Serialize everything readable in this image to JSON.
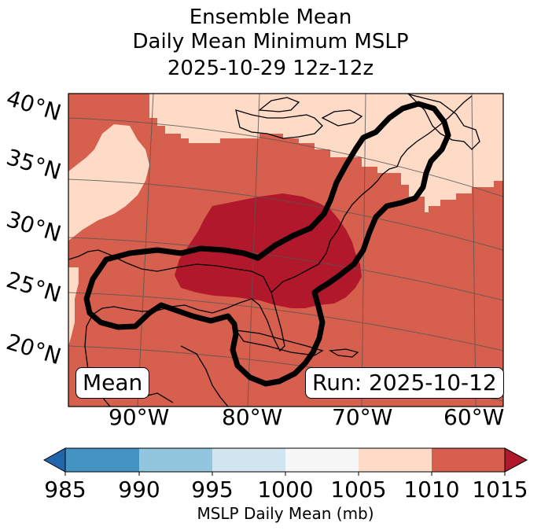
{
  "title": {
    "line1": "Ensemble Mean",
    "line2": "Daily Mean Minimum MSLP",
    "line3": "2025-10-29 12z-12z"
  },
  "map": {
    "lat_labels": [
      "40°N",
      "35°N",
      "30°N",
      "25°N",
      "20°N"
    ],
    "lon_labels": [
      "90°W",
      "80°W",
      "70°W",
      "60°W"
    ],
    "label_left": "Mean",
    "label_right": "Run: 2025-10-12",
    "colors": {
      "c1000_1005": "#f7f7f7",
      "c1005_1010": "#fddbc7",
      "c1010_1015": "#d6604d",
      "c1015_plus": "#b2182b"
    }
  },
  "colorbar": {
    "ticks": [
      "985",
      "990",
      "995",
      "1000",
      "1005",
      "1010",
      "1015"
    ],
    "label": "MSLP Daily Mean (mb)",
    "colors": [
      "#2166ac",
      "#4393c3",
      "#92c5de",
      "#d1e5f0",
      "#f7f7f7",
      "#fddbc7",
      "#d6604d",
      "#b2182b"
    ]
  }
}
